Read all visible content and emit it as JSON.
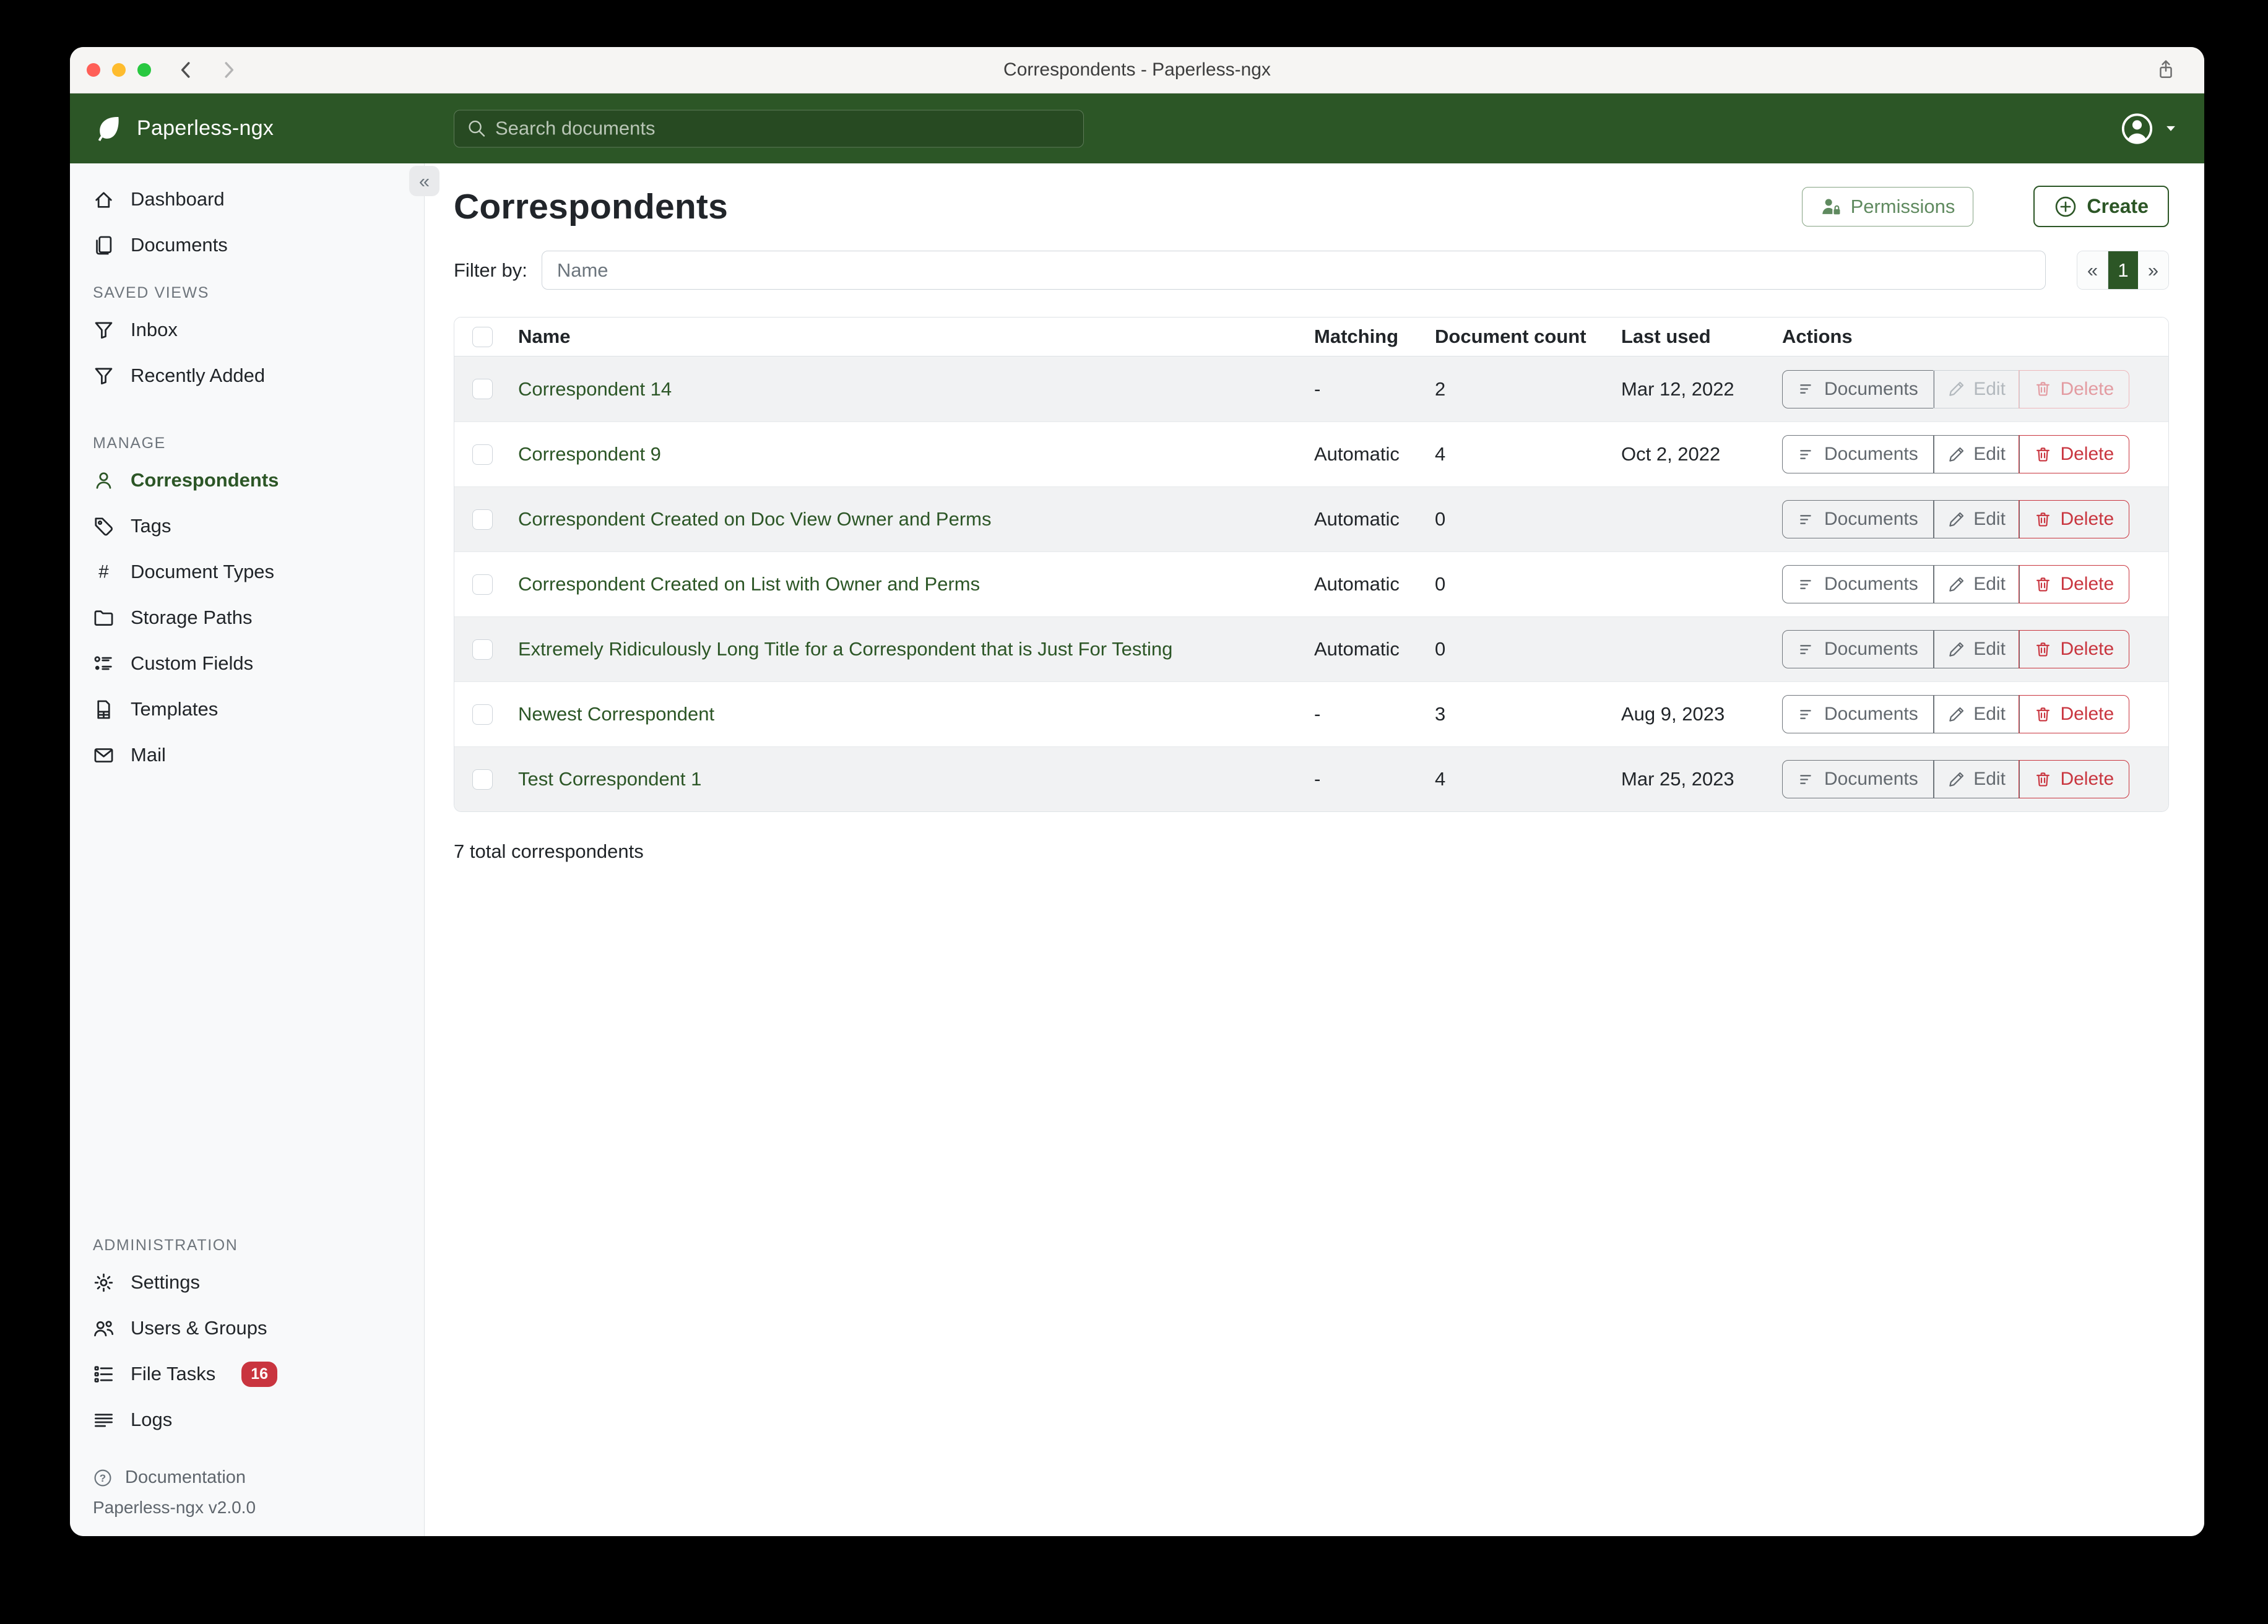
{
  "titlebar": {
    "title": "Correspondents - Paperless-ngx"
  },
  "header": {
    "brand": "Paperless-ngx",
    "search_placeholder": "Search documents"
  },
  "sidebar": {
    "top_items": [
      {
        "label": "Dashboard",
        "icon": "house"
      },
      {
        "label": "Documents",
        "icon": "files"
      }
    ],
    "sections": [
      {
        "title": "SAVED VIEWS",
        "items": [
          {
            "label": "Inbox",
            "icon": "funnel"
          },
          {
            "label": "Recently Added",
            "icon": "funnel"
          }
        ]
      },
      {
        "title": "MANAGE",
        "items": [
          {
            "label": "Correspondents",
            "icon": "person",
            "active": true
          },
          {
            "label": "Tags",
            "icon": "tag"
          },
          {
            "label": "Document Types",
            "icon": "hash"
          },
          {
            "label": "Storage Paths",
            "icon": "folder"
          },
          {
            "label": "Custom Fields",
            "icon": "custom-fields"
          },
          {
            "label": "Templates",
            "icon": "file"
          },
          {
            "label": "Mail",
            "icon": "envelope"
          }
        ]
      },
      {
        "title": "ADMINISTRATION",
        "items": [
          {
            "label": "Settings",
            "icon": "gear"
          },
          {
            "label": "Users & Groups",
            "icon": "people"
          },
          {
            "label": "File Tasks",
            "icon": "list-task",
            "badge": "16"
          },
          {
            "label": "Logs",
            "icon": "text-left"
          }
        ]
      }
    ],
    "documentation_label": "Documentation",
    "version": "Paperless-ngx v2.0.0"
  },
  "page": {
    "title": "Correspondents",
    "permissions_button": "Permissions",
    "create_button": "Create",
    "filter_label": "Filter by:",
    "filter_placeholder": "Name",
    "pagination": {
      "prev": "«",
      "current_page": "1",
      "next": "»"
    },
    "total_text": "7 total correspondents"
  },
  "table": {
    "headers": [
      "Name",
      "Matching",
      "Document count",
      "Last used",
      "Actions"
    ],
    "action_labels": {
      "documents": "Documents",
      "edit": "Edit",
      "delete": "Delete"
    },
    "rows": [
      {
        "name": "Correspondent 14",
        "matching": "-",
        "count": "2",
        "last_used": "Mar 12, 2022",
        "edit_disabled": true,
        "delete_disabled": true
      },
      {
        "name": "Correspondent 9",
        "matching": "Automatic",
        "count": "4",
        "last_used": "Oct 2, 2022",
        "edit_disabled": false,
        "delete_disabled": false
      },
      {
        "name": "Correspondent Created on Doc View Owner and Perms",
        "matching": "Automatic",
        "count": "0",
        "last_used": "",
        "edit_disabled": false,
        "delete_disabled": false
      },
      {
        "name": "Correspondent Created on List with Owner and Perms",
        "matching": "Automatic",
        "count": "0",
        "last_used": "",
        "edit_disabled": false,
        "delete_disabled": false
      },
      {
        "name": "Extremely Ridiculously Long Title for a Correspondent that is Just For Testing",
        "matching": "Automatic",
        "count": "0",
        "last_used": "",
        "edit_disabled": false,
        "delete_disabled": false
      },
      {
        "name": "Newest Correspondent",
        "matching": "-",
        "count": "3",
        "last_used": "Aug 9, 2023",
        "edit_disabled": false,
        "delete_disabled": false
      },
      {
        "name": "Test Correspondent 1",
        "matching": "-",
        "count": "4",
        "last_used": "Mar 25, 2023",
        "edit_disabled": false,
        "delete_disabled": false
      }
    ]
  },
  "colors": {
    "accent_green": "#2c5626",
    "header_green": "#2c5626",
    "search_field_green": "#274a22",
    "danger_red": "#c9353f",
    "sidebar_bg": "#f8f9fa",
    "row_stripe": "#f1f2f3"
  }
}
